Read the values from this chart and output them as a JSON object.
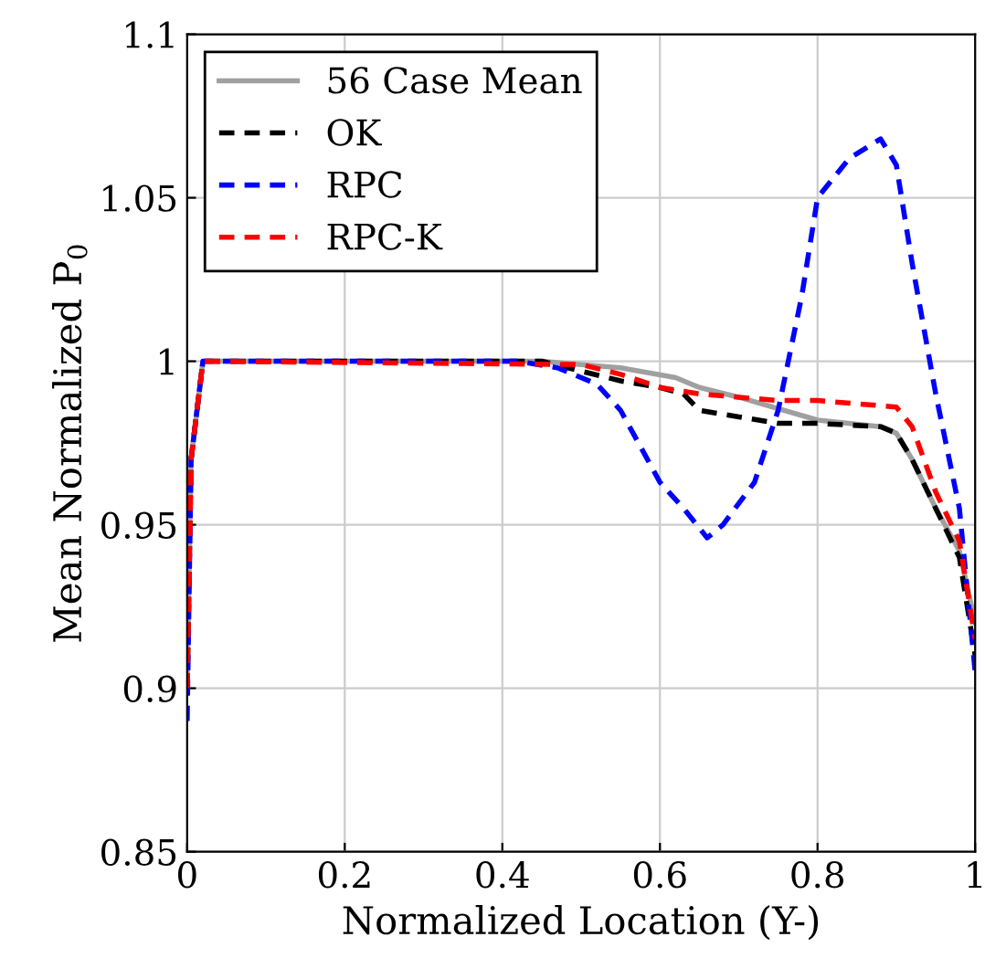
{
  "chart_data": {
    "type": "line",
    "xlabel": "Normalized Location (Y-)",
    "ylabel": "Mean Normalized P$_{0}$",
    "xlim": [
      0,
      1
    ],
    "ylim": [
      0.85,
      1.1
    ],
    "xticks": [
      0,
      0.2,
      0.4,
      0.6,
      0.8,
      1
    ],
    "yticks": [
      0.85,
      0.9,
      0.95,
      1,
      1.05,
      1.1
    ],
    "grid": true,
    "legend": "top left",
    "series": [
      {
        "name": "56 Case Mean",
        "color": "#a0a0a0",
        "line_style": "solid",
        "x": [
          0,
          0.005,
          0.02,
          0.45,
          0.5,
          0.55,
          0.62,
          0.65,
          0.7,
          0.8,
          0.88,
          0.9,
          0.92,
          0.95,
          0.98,
          1
        ],
        "values": [
          0.9,
          0.97,
          1,
          1,
          0.999,
          0.998,
          0.995,
          0.992,
          0.989,
          0.982,
          0.98,
          0.978,
          0.97,
          0.955,
          0.942,
          0.92
        ]
      },
      {
        "name": "OK",
        "color": "#000000",
        "line_style": "dashed",
        "x": [
          0,
          0.005,
          0.02,
          0.45,
          0.5,
          0.55,
          0.6,
          0.63,
          0.65,
          0.7,
          0.75,
          0.8,
          0.88,
          0.9,
          0.92,
          0.95,
          0.98,
          1
        ],
        "values": [
          0.9,
          0.97,
          1,
          1,
          0.997,
          0.994,
          0.992,
          0.99,
          0.985,
          0.983,
          0.981,
          0.981,
          0.98,
          0.978,
          0.97,
          0.955,
          0.94,
          0.91
        ]
      },
      {
        "name": "RPC",
        "color": "#0000ff",
        "line_style": "dashed",
        "x": [
          0,
          0.005,
          0.02,
          0.42,
          0.47,
          0.52,
          0.55,
          0.6,
          0.63,
          0.66,
          0.68,
          0.72,
          0.75,
          0.78,
          0.8,
          0.84,
          0.88,
          0.9,
          0.92,
          0.95,
          0.98,
          1
        ],
        "values": [
          0.89,
          0.97,
          1,
          1,
          0.998,
          0.993,
          0.985,
          0.963,
          0.955,
          0.946,
          0.95,
          0.963,
          0.985,
          1.02,
          1.05,
          1.062,
          1.068,
          1.06,
          1.03,
          0.99,
          0.955,
          0.905
        ]
      },
      {
        "name": "RPC-K",
        "color": "#ff0000",
        "line_style": "dashed",
        "x": [
          0,
          0.005,
          0.02,
          0.5,
          0.55,
          0.6,
          0.65,
          0.7,
          0.75,
          0.8,
          0.9,
          0.92,
          0.95,
          0.98,
          1
        ],
        "values": [
          0.9,
          0.97,
          1,
          0.999,
          0.996,
          0.992,
          0.99,
          0.989,
          0.988,
          0.988,
          0.986,
          0.98,
          0.96,
          0.945,
          0.915
        ]
      }
    ]
  }
}
